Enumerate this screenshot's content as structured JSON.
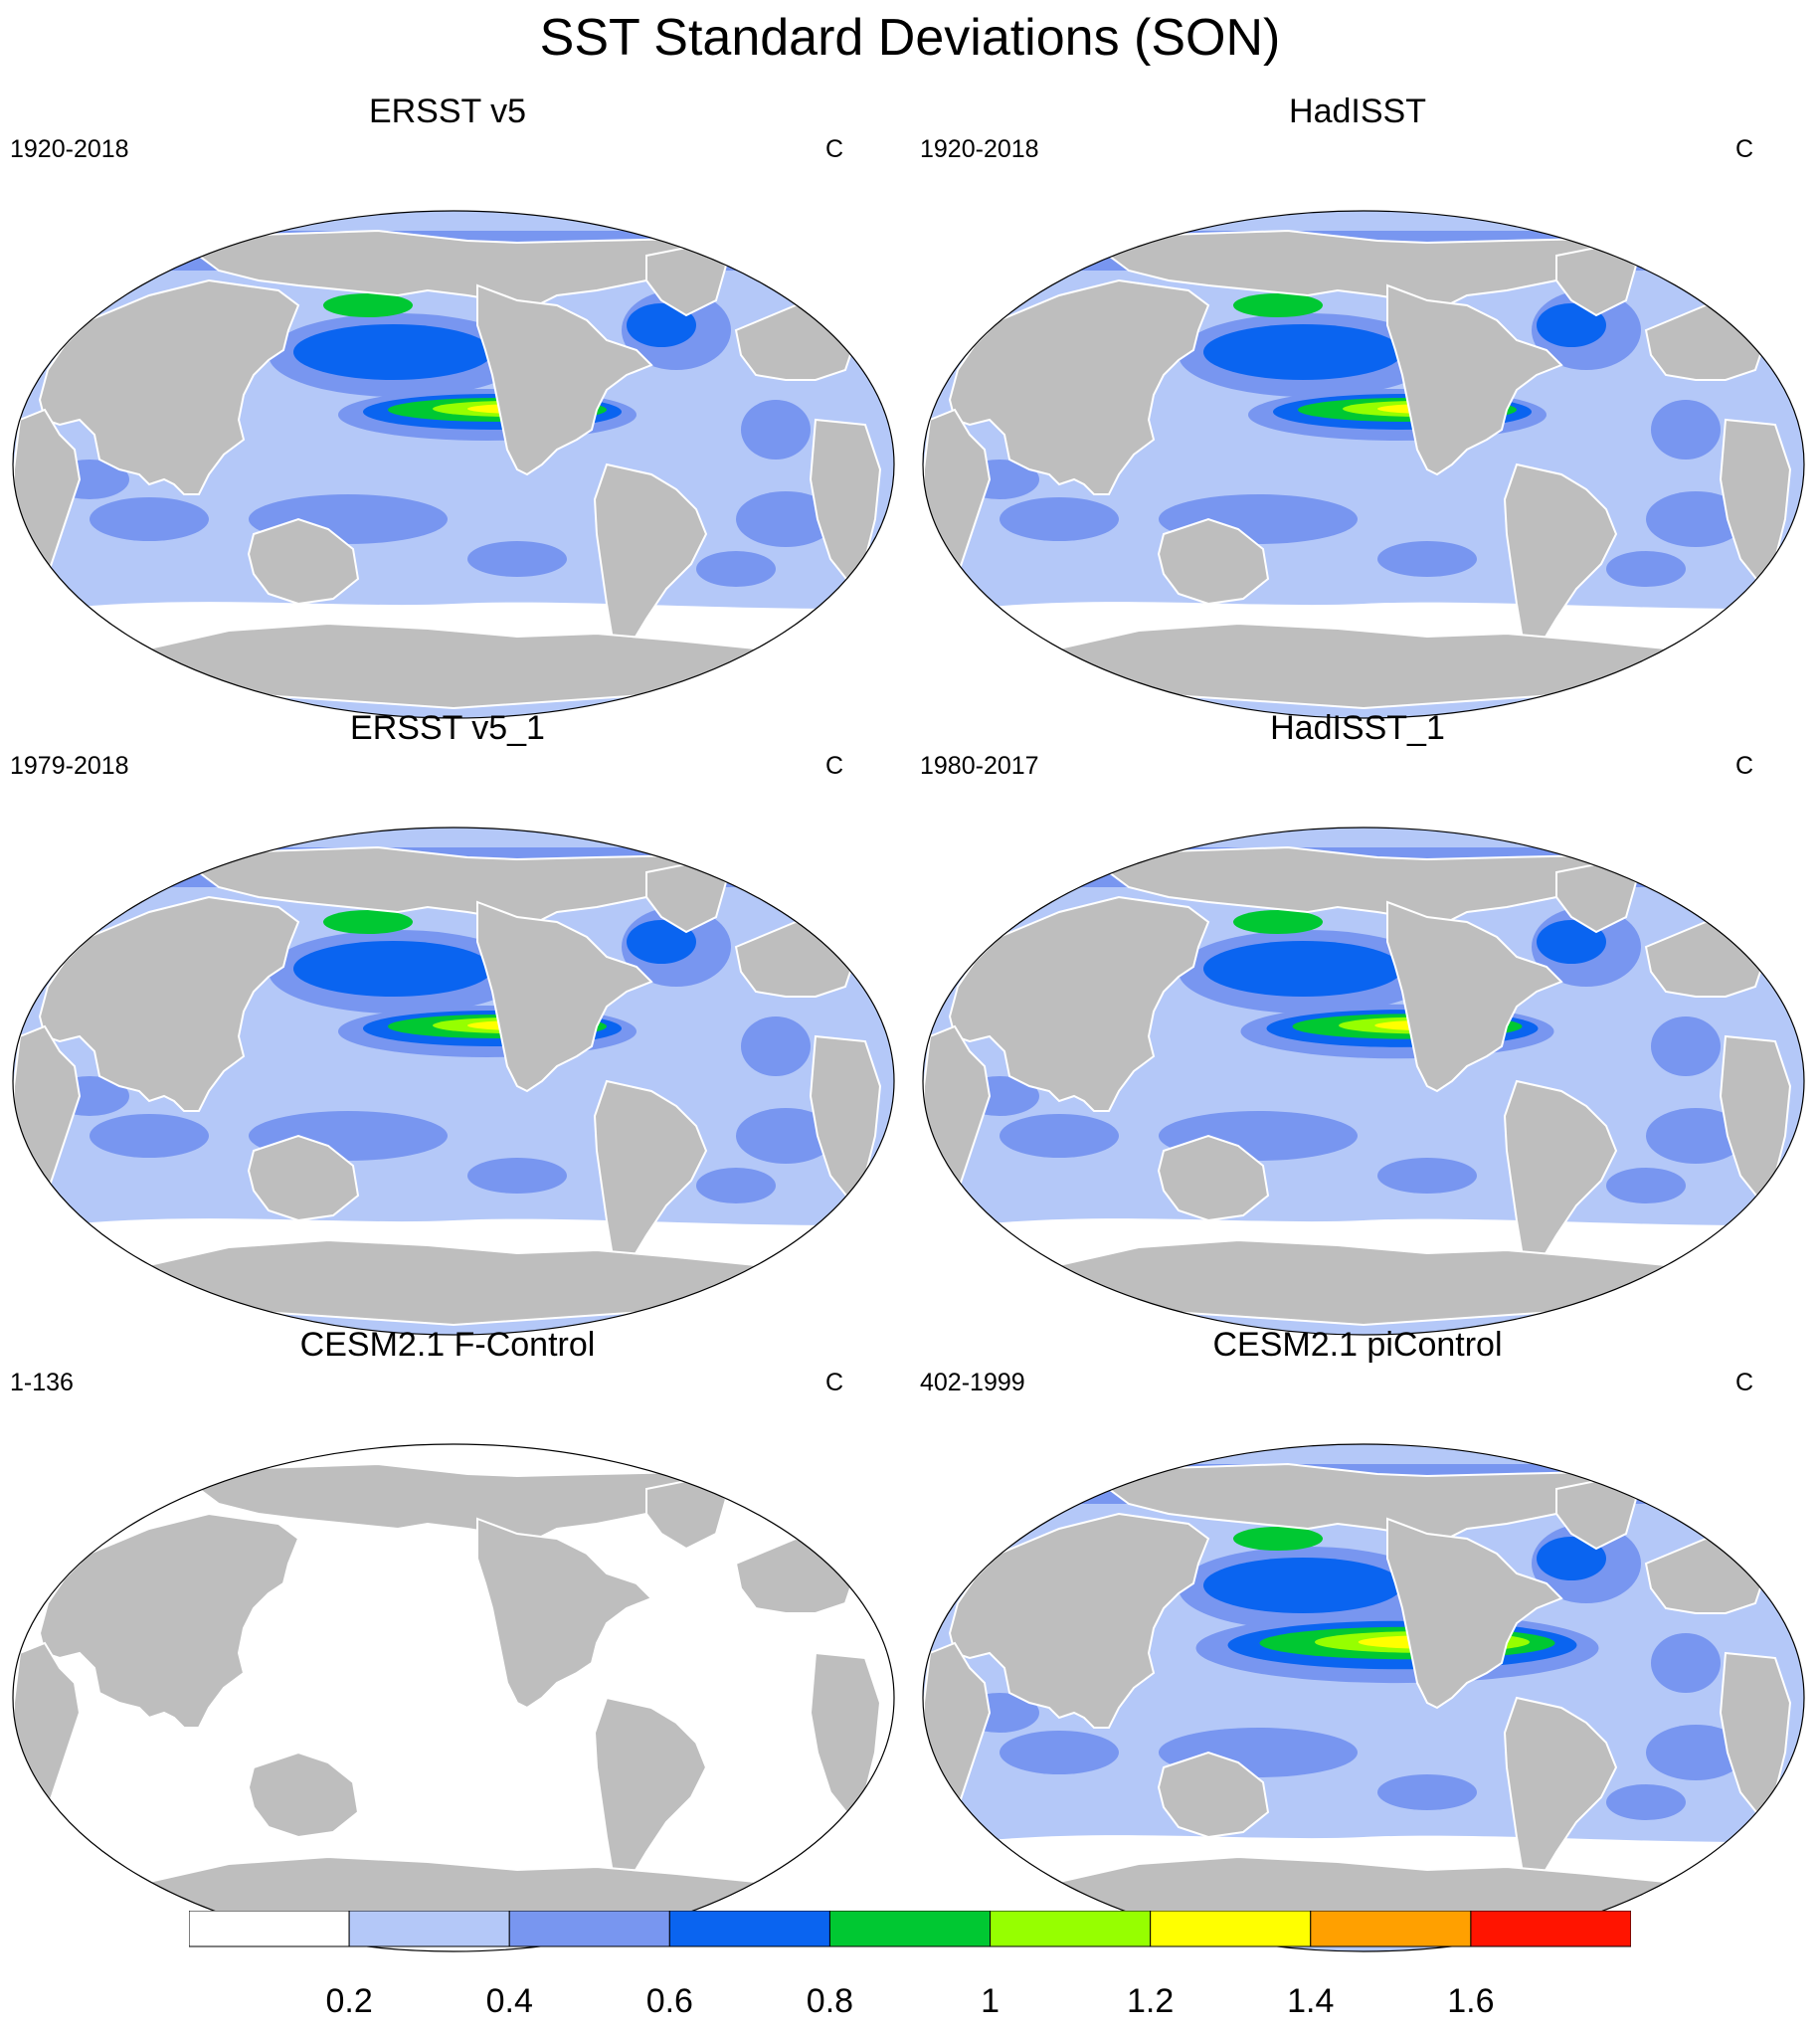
{
  "title": "SST Standard Deviations (SON)",
  "panels": [
    {
      "title": "ERSST v5",
      "period": "1920-2018",
      "units": "C",
      "variant": "obs"
    },
    {
      "title": "HadISST",
      "period": "1920-2018",
      "units": "C",
      "variant": "obs"
    },
    {
      "title": "ERSST v5_1",
      "period": "1979-2018",
      "units": "C",
      "variant": "obs"
    },
    {
      "title": "HadISST_1",
      "period": "1980-2017",
      "units": "C",
      "variant": "obs_hi"
    },
    {
      "title": "CESM2.1 F-Control",
      "period": "1-136",
      "units": "C",
      "variant": "blank"
    },
    {
      "title": "CESM2.1 piControl",
      "period": "402-1999",
      "units": "C",
      "variant": "model"
    }
  ],
  "colorbar": {
    "levels": [
      0.2,
      0.4,
      0.6,
      0.8,
      1.0,
      1.2,
      1.4,
      1.6
    ],
    "labels": [
      "0.2",
      "0.4",
      "0.6",
      "0.8",
      "1",
      "1.2",
      "1.4",
      "1.6"
    ],
    "colors": [
      "#ffffff",
      "#b4c8f8",
      "#7896f0",
      "#0a64f0",
      "#00c832",
      "#96ff00",
      "#ffff00",
      "#ffa000",
      "#ff1400"
    ]
  },
  "land_color": "#bebebe"
}
